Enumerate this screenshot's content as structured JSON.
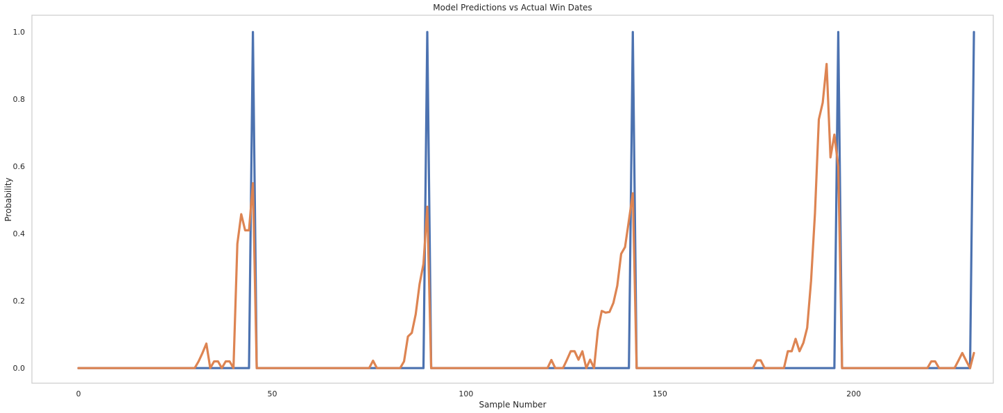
{
  "chart_data": {
    "type": "line",
    "title": "Model Predictions vs Actual Win Dates",
    "xlabel": "Sample Number",
    "ylabel": "Probability",
    "xlim": [
      -12,
      236
    ],
    "ylim": [
      -0.045,
      1.05
    ],
    "xticks": [
      0,
      50,
      100,
      150,
      200
    ],
    "yticks": [
      0.0,
      0.2,
      0.4,
      0.6,
      0.8,
      1.0
    ],
    "ytick_labels": [
      "0.0",
      "0.2",
      "0.4",
      "0.6",
      "0.8",
      "1.0"
    ],
    "grid": false,
    "series": [
      {
        "color": "#4c72b0",
        "points": [
          [
            0,
            0
          ],
          [
            44,
            0
          ],
          [
            45,
            1.0
          ],
          [
            46,
            0
          ],
          [
            89,
            0
          ],
          [
            90,
            1.0
          ],
          [
            91,
            0
          ],
          [
            142,
            0
          ],
          [
            143,
            1.0
          ],
          [
            144,
            0
          ],
          [
            195,
            0
          ],
          [
            196,
            1.0
          ],
          [
            197,
            0
          ],
          [
            230,
            0
          ],
          [
            231,
            1.0
          ]
        ]
      },
      {
        "color": "#dd8452",
        "points": [
          [
            0,
            0
          ],
          [
            30,
            0
          ],
          [
            31,
            0.02
          ],
          [
            32,
            0.045
          ],
          [
            33,
            0.073
          ],
          [
            34,
            0
          ],
          [
            35,
            0.02
          ],
          [
            36,
            0.02
          ],
          [
            37,
            0
          ],
          [
            38,
            0.02
          ],
          [
            39,
            0.02
          ],
          [
            40,
            0
          ],
          [
            41,
            0.37
          ],
          [
            42,
            0.458
          ],
          [
            43,
            0.41
          ],
          [
            44,
            0.41
          ],
          [
            45,
            0.55
          ],
          [
            46,
            0
          ],
          [
            75,
            0
          ],
          [
            76,
            0.022
          ],
          [
            77,
            0
          ],
          [
            83,
            0
          ],
          [
            84,
            0.02
          ],
          [
            85,
            0.094
          ],
          [
            86,
            0.105
          ],
          [
            87,
            0.16
          ],
          [
            88,
            0.25
          ],
          [
            89,
            0.31
          ],
          [
            90,
            0.48
          ],
          [
            91,
            0
          ],
          [
            121,
            0
          ],
          [
            122,
            0.024
          ],
          [
            123,
            0
          ],
          [
            125,
            0
          ],
          [
            126,
            0.024
          ],
          [
            127,
            0.05
          ],
          [
            128,
            0.05
          ],
          [
            129,
            0.025
          ],
          [
            130,
            0.05
          ],
          [
            131,
            0
          ],
          [
            132,
            0.025
          ],
          [
            133,
            0
          ],
          [
            134,
            0.113
          ],
          [
            135,
            0.17
          ],
          [
            136,
            0.165
          ],
          [
            137,
            0.167
          ],
          [
            138,
            0.194
          ],
          [
            139,
            0.245
          ],
          [
            140,
            0.34
          ],
          [
            141,
            0.36
          ],
          [
            142,
            0.44
          ],
          [
            143,
            0.52
          ],
          [
            144,
            0
          ],
          [
            174,
            0
          ],
          [
            175,
            0.023
          ],
          [
            176,
            0.023
          ],
          [
            177,
            0
          ],
          [
            182,
            0
          ],
          [
            183,
            0.05
          ],
          [
            184,
            0.05
          ],
          [
            185,
            0.087
          ],
          [
            186,
            0.05
          ],
          [
            187,
            0.075
          ],
          [
            188,
            0.12
          ],
          [
            189,
            0.26
          ],
          [
            190,
            0.46
          ],
          [
            191,
            0.74
          ],
          [
            192,
            0.79
          ],
          [
            193,
            0.905
          ],
          [
            194,
            0.627
          ],
          [
            195,
            0.695
          ],
          [
            196,
            0.6
          ],
          [
            197,
            0
          ],
          [
            219,
            0
          ],
          [
            220,
            0.02
          ],
          [
            221,
            0.02
          ],
          [
            222,
            0
          ],
          [
            226,
            0
          ],
          [
            227,
            0.022
          ],
          [
            228,
            0.045
          ],
          [
            229,
            0.022
          ],
          [
            230,
            0
          ],
          [
            231,
            0.045
          ]
        ]
      }
    ]
  }
}
